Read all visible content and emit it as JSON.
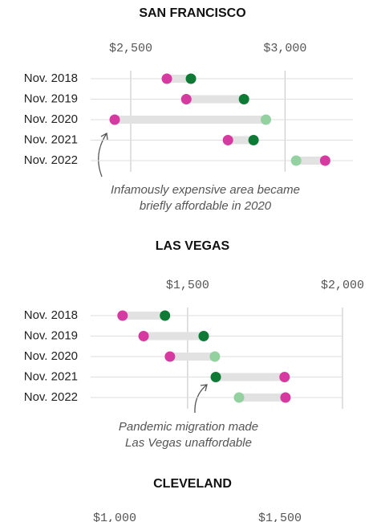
{
  "chart_data": [
    {
      "type": "dumbbell",
      "title": "SAN FRANCISCO",
      "categories": [
        "Nov. 2018",
        "Nov. 2019",
        "Nov. 2020",
        "Nov. 2021",
        "Nov. 2022"
      ],
      "series": [
        {
          "color": "#d6399f",
          "values": [
            2617,
            2680,
            2448,
            2815,
            3130
          ]
        },
        {
          "colors": [
            "#0f7a35",
            "#0f7a35",
            "#93d1a0",
            "#0f7a35",
            "#93d1a0"
          ],
          "values": [
            2695,
            2867,
            2938,
            2898,
            3036
          ]
        }
      ],
      "xlim": [
        2370,
        3220
      ],
      "xticks": [
        {
          "value": 2500,
          "label": "$2,500"
        },
        {
          "value": 3000,
          "label": "$3,000"
        }
      ],
      "annotation": [
        "Infamously expensive area became",
        "briefly affordable in 2020"
      ]
    },
    {
      "type": "dumbbell",
      "title": "LAS VEGAS",
      "categories": [
        "Nov. 2018",
        "Nov. 2019",
        "Nov. 2020",
        "Nov. 2021",
        "Nov. 2022"
      ],
      "series": [
        {
          "color": "#d6399f",
          "values": [
            1290,
            1358,
            1443,
            1813,
            1816
          ]
        },
        {
          "colors": [
            "#0f7a35",
            "#0f7a35",
            "#93d1a0",
            "#0f7a35",
            "#93d1a0"
          ],
          "values": [
            1427,
            1552,
            1588,
            1591,
            1666
          ]
        }
      ],
      "xlim": [
        1187,
        2000
      ],
      "xticks": [
        {
          "value": 1500,
          "label": "$1,500"
        },
        {
          "value": 2000,
          "label": "$2,000"
        }
      ],
      "annotation": [
        "Pandemic migration made",
        "Las Vegas unaffordable"
      ]
    },
    {
      "type": "dumbbell",
      "title": "CLEVELAND",
      "xlim": [
        927,
        1721
      ],
      "xticks": [
        {
          "value": 1000,
          "label": "$1,000"
        },
        {
          "value": 1500,
          "label": "$1,500"
        }
      ]
    }
  ]
}
